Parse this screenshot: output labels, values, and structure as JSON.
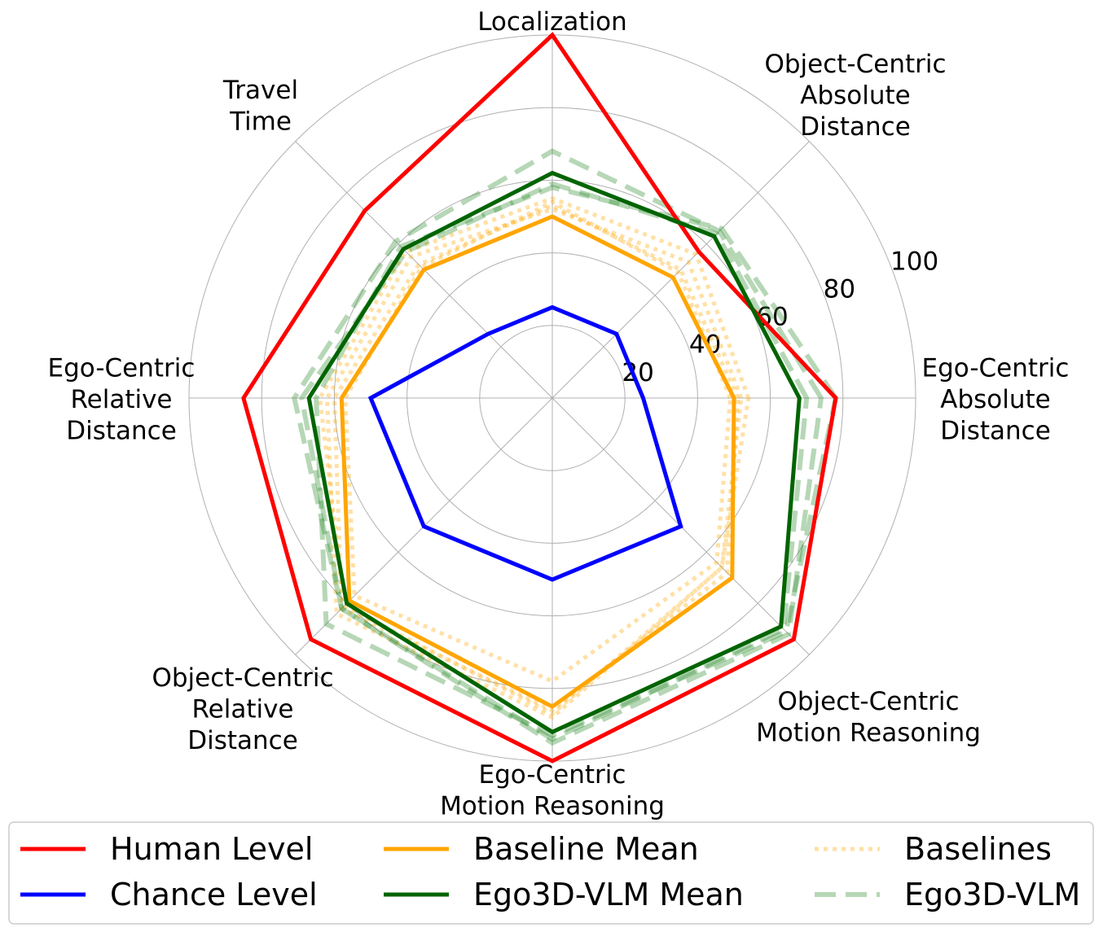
{
  "chart_data": {
    "type": "radar",
    "axes": [
      "Ego-Centric\nAbsolute\nDistance",
      "Object-Centric\nAbsolute\nDistance",
      "Localization",
      "Travel\nTime",
      "Ego-Centric\nRelative\nDistance",
      "Object-Centric\nRelative\nDistance",
      "Ego-Centric\nMotion Reasoning",
      "Object-Centric\nMotion Reasoning"
    ],
    "rlim": [
      0,
      100
    ],
    "rticks": [
      20,
      40,
      60,
      80,
      100
    ],
    "grid": true,
    "legend_position": "bottom",
    "series": [
      {
        "name": "Human Level",
        "style": "solid",
        "color": "#ff0000",
        "values": [
          78,
          57,
          100,
          73,
          85,
          94,
          100,
          94
        ]
      },
      {
        "name": "Chance Level",
        "style": "solid",
        "color": "#0000ff",
        "values": [
          25,
          25,
          25,
          25,
          50,
          50,
          50,
          50
        ]
      },
      {
        "name": "Baseline Mean",
        "style": "solid",
        "color": "#ffa500",
        "values": [
          50,
          47,
          50,
          50,
          58,
          79,
          85,
          70
        ]
      },
      {
        "name": "Ego3D-VLM Mean",
        "style": "solid",
        "color": "#006400",
        "values": [
          68,
          63,
          62,
          58,
          67,
          80,
          92,
          89
        ]
      },
      {
        "name": "Baselines",
        "style": "dotted",
        "color": "#ffa500",
        "values": [
          51,
          50,
          53,
          52,
          60,
          82,
          86,
          68
        ],
        "legend": false
      },
      {
        "name": "Baselines",
        "style": "dotted",
        "color": "#ffa500",
        "values": [
          52,
          53,
          52,
          55,
          62,
          84,
          88,
          66
        ],
        "legend": false
      },
      {
        "name": "Baselines",
        "style": "dotted",
        "color": "#ffa500",
        "values": [
          49,
          49,
          54,
          51,
          57,
          77,
          78,
          64
        ],
        "legend": false
      },
      {
        "name": "Baselines",
        "style": "dotted",
        "color": "#ffa500",
        "values": [
          54,
          56,
          55,
          57,
          64,
          81,
          87,
          66
        ],
        "legend": true
      },
      {
        "name": "Ego3D-VLM",
        "style": "dashed",
        "color": "#2e8b2e",
        "values": [
          70,
          64,
          59,
          57,
          69,
          82,
          94,
          90
        ],
        "legend": false
      },
      {
        "name": "Ego3D-VLM",
        "style": "dashed",
        "color": "#2e8b2e",
        "values": [
          74,
          65,
          68,
          61,
          71,
          82,
          95,
          92
        ],
        "legend": false
      },
      {
        "name": "Ego3D-VLM",
        "style": "dashed",
        "color": "#2e8b2e",
        "values": [
          78,
          66,
          58,
          59,
          65,
          88,
          93,
          91
        ],
        "legend": true
      }
    ]
  }
}
